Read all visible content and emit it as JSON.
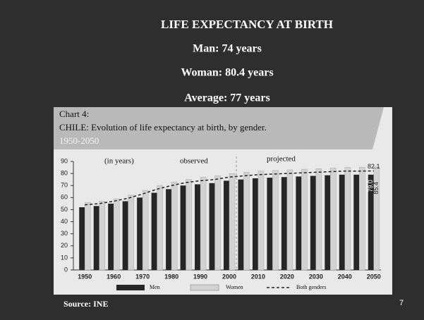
{
  "slide": {
    "title": "LIFE EXPECTANCY AT BIRTH",
    "lines": [
      "Man: 74 years",
      "Woman: 80.4 years",
      "Average: 77 years"
    ],
    "source": "Source: INE",
    "page_number": "7"
  },
  "chart_data": {
    "type": "bar",
    "label": "Chart 4:",
    "title": "CHILE: Evolution of life expectancy at birth, by gender.",
    "subtitle": "1950-2050",
    "annotations": [
      "(in years)",
      "observed",
      "projected"
    ],
    "categories": [
      "1950",
      null,
      "1960",
      null,
      "1970",
      null,
      "1980",
      null,
      "1990",
      null,
      "2000",
      null,
      "2010",
      null,
      "2020",
      null,
      "2030",
      null,
      "2040",
      null,
      "2050"
    ],
    "series": [
      {
        "name": "Men",
        "color": "#262626",
        "values": [
          52,
          53,
          55,
          57,
          60,
          64,
          67,
          70,
          71,
          72,
          74,
          75,
          76,
          76.5,
          77,
          77.5,
          78,
          78.5,
          79,
          79,
          79
        ],
        "value_labels": [
          null,
          null,
          null,
          null,
          null,
          null,
          null,
          null,
          null,
          null,
          null,
          null,
          null,
          null,
          null,
          null,
          null,
          null,
          null,
          null,
          "79.0"
        ]
      },
      {
        "name": "Women",
        "color": "#d2d2d2",
        "values": [
          56,
          57,
          59,
          62,
          66,
          70,
          73,
          75,
          77,
          78,
          80,
          81,
          82,
          82.5,
          83,
          83.5,
          84,
          84.5,
          85,
          85.2,
          85.4
        ],
        "value_labels": [
          null,
          null,
          null,
          null,
          null,
          null,
          null,
          null,
          null,
          null,
          null,
          null,
          null,
          null,
          null,
          null,
          null,
          null,
          null,
          null,
          "85.4"
        ]
      },
      {
        "name": "Both genders",
        "color": "#222222",
        "line": true,
        "values": [
          54,
          55,
          57,
          59.5,
          63,
          67,
          70,
          72.5,
          74,
          75,
          77,
          78,
          79,
          79.5,
          80,
          80.5,
          81,
          81.5,
          82,
          82,
          82.1
        ],
        "value_labels": [
          null,
          null,
          null,
          null,
          null,
          null,
          null,
          null,
          null,
          null,
          null,
          null,
          null,
          null,
          null,
          null,
          null,
          null,
          null,
          null,
          "82.1"
        ]
      }
    ],
    "ylim": [
      0,
      90
    ],
    "yticks": [
      0,
      10,
      20,
      30,
      40,
      50,
      60,
      70,
      80,
      90
    ]
  }
}
